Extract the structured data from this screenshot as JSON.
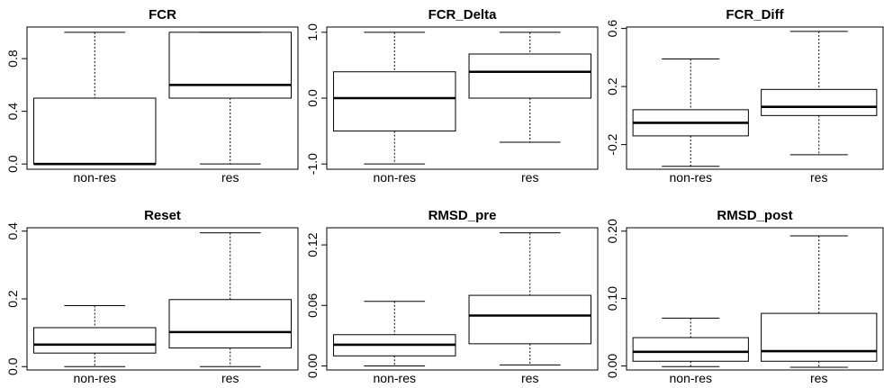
{
  "chart_data": [
    {
      "type": "box",
      "title": "FCR",
      "categories": [
        "non-res",
        "res"
      ],
      "ylim": [
        -0.04,
        1.04
      ],
      "yticks": [
        0.0,
        0.4,
        0.8
      ],
      "ytick_labels": [
        "0.0",
        "0.4",
        "0.8"
      ],
      "boxes": [
        {
          "category": "non-res",
          "whisker_low": 0.0,
          "q1": 0.0,
          "median": 0.0,
          "q3": 0.5,
          "whisker_high": 1.0
        },
        {
          "category": "res",
          "whisker_low": 0.0,
          "q1": 0.5,
          "median": 0.6,
          "q3": 1.0,
          "whisker_high": 1.0
        }
      ]
    },
    {
      "type": "box",
      "title": "FCR_Delta",
      "categories": [
        "non-res",
        "res"
      ],
      "ylim": [
        -1.08,
        1.08
      ],
      "yticks": [
        -1.0,
        0.0,
        1.0
      ],
      "ytick_labels": [
        "-1.0",
        "0.0",
        "1.0"
      ],
      "boxes": [
        {
          "category": "non-res",
          "whisker_low": -1.0,
          "q1": -0.5,
          "median": 0.0,
          "q3": 0.4,
          "whisker_high": 1.0
        },
        {
          "category": "res",
          "whisker_low": -0.67,
          "q1": 0.0,
          "median": 0.4,
          "q3": 0.67,
          "whisker_high": 1.0
        }
      ]
    },
    {
      "type": "box",
      "title": "FCR_Diff",
      "categories": [
        "non-res",
        "res"
      ],
      "ylim": [
        -0.37,
        0.61
      ],
      "yticks": [
        -0.2,
        0.2,
        0.6
      ],
      "ytick_labels": [
        "-0.2",
        "0.2",
        "0.6"
      ],
      "boxes": [
        {
          "category": "non-res",
          "whisker_low": -0.35,
          "q1": -0.14,
          "median": -0.05,
          "q3": 0.04,
          "whisker_high": 0.39
        },
        {
          "category": "res",
          "whisker_low": -0.27,
          "q1": 0.0,
          "median": 0.06,
          "q3": 0.18,
          "whisker_high": 0.58
        }
      ]
    },
    {
      "type": "box",
      "title": "Reset",
      "categories": [
        "non-res",
        "res"
      ],
      "ylim": [
        -0.01,
        0.41
      ],
      "yticks": [
        0.0,
        0.2,
        0.4
      ],
      "ytick_labels": [
        "0.0",
        "0.2",
        "0.4"
      ],
      "boxes": [
        {
          "category": "non-res",
          "whisker_low": 0.0,
          "q1": 0.04,
          "median": 0.065,
          "q3": 0.115,
          "whisker_high": 0.18
        },
        {
          "category": "res",
          "whisker_low": 0.0,
          "q1": 0.055,
          "median": 0.102,
          "q3": 0.198,
          "whisker_high": 0.395
        }
      ]
    },
    {
      "type": "box",
      "title": "RMSD_pre",
      "categories": [
        "non-res",
        "res"
      ],
      "ylim": [
        -0.004,
        0.137
      ],
      "yticks": [
        0.0,
        0.06,
        0.12
      ],
      "ytick_labels": [
        "0.00",
        "0.06",
        "0.12"
      ],
      "boxes": [
        {
          "category": "non-res",
          "whisker_low": 0.0,
          "q1": 0.01,
          "median": 0.021,
          "q3": 0.031,
          "whisker_high": 0.064
        },
        {
          "category": "res",
          "whisker_low": 0.001,
          "q1": 0.022,
          "median": 0.05,
          "q3": 0.07,
          "whisker_high": 0.132
        }
      ]
    },
    {
      "type": "box",
      "title": "RMSD_post",
      "categories": [
        "non-res",
        "res"
      ],
      "ylim": [
        -0.006,
        0.205
      ],
      "yticks": [
        0.0,
        0.1,
        0.2
      ],
      "ytick_labels": [
        "0.00",
        "0.10",
        "0.20"
      ],
      "boxes": [
        {
          "category": "non-res",
          "whisker_low": -0.001,
          "q1": 0.007,
          "median": 0.021,
          "q3": 0.042,
          "whisker_high": 0.071
        },
        {
          "category": "res",
          "whisker_low": -0.002,
          "q1": 0.007,
          "median": 0.022,
          "q3": 0.078,
          "whisker_high": 0.193
        }
      ]
    }
  ]
}
